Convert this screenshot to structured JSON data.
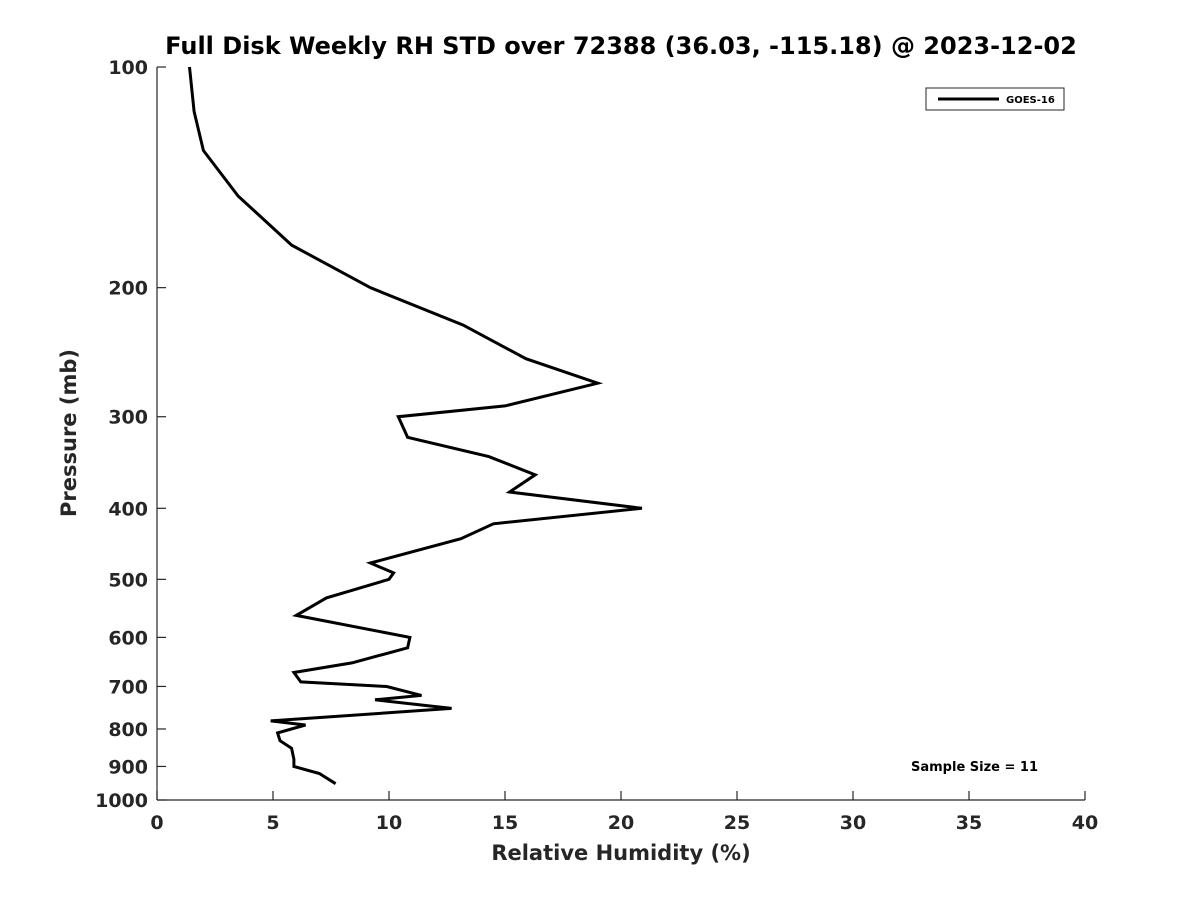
{
  "chart_data": {
    "type": "line",
    "title": "Full Disk Weekly RH STD over 72388 (36.03, -115.18) @ 2023-12-02",
    "xlabel": "Relative Humidity (%)",
    "ylabel": "Pressure (mb)",
    "xlim": [
      0,
      40
    ],
    "ylim": [
      100,
      1000
    ],
    "y_scale": "log",
    "y_reversed": true,
    "xticks": [
      0,
      5,
      10,
      15,
      20,
      25,
      30,
      35,
      40
    ],
    "yticks": [
      100,
      200,
      300,
      400,
      500,
      600,
      700,
      800,
      900,
      1000
    ],
    "grid": false,
    "legend_position": "top-right",
    "series": [
      {
        "name": "GOES-16",
        "color": "#000000",
        "x": [
          1.4,
          1.6,
          2.0,
          3.5,
          5.8,
          9.2,
          13.2,
          15.9,
          19.0,
          15.0,
          10.4,
          10.8,
          14.3,
          16.3,
          15.2,
          20.9,
          14.5,
          13.1,
          9.2,
          10.2,
          10.0,
          7.3,
          6.0,
          10.9,
          10.8,
          8.4,
          5.9,
          6.2,
          9.9,
          11.4,
          9.4,
          12.7,
          4.9,
          6.4,
          5.2,
          5.3,
          5.8,
          5.9,
          5.9,
          7.0,
          7.7
        ],
        "y": [
          100,
          115,
          130,
          150,
          175,
          200,
          225,
          250,
          270,
          290,
          300,
          320,
          340,
          360,
          380,
          400,
          420,
          440,
          475,
          490,
          500,
          530,
          560,
          600,
          620,
          650,
          670,
          690,
          700,
          720,
          730,
          750,
          780,
          790,
          810,
          830,
          850,
          880,
          900,
          920,
          950
        ]
      }
    ],
    "annotations": [
      "Sample Size = 11"
    ]
  }
}
